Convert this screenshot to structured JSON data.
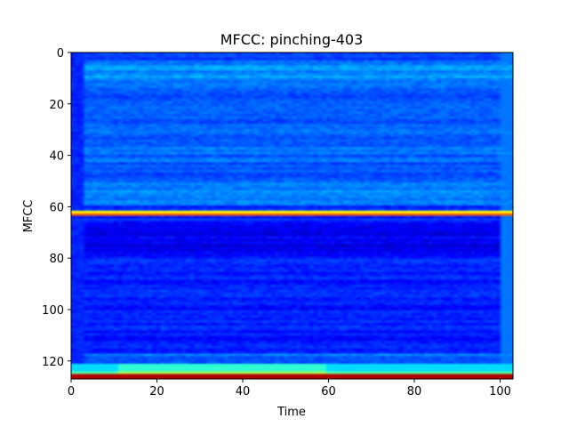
{
  "chart_data": {
    "type": "heatmap",
    "title": "MFCC: pinching-403",
    "xlabel": "Time",
    "ylabel": "MFCC",
    "xlim": [
      0,
      103
    ],
    "ylim": [
      127,
      0
    ],
    "y_inverted": true,
    "colormap": "jet",
    "grid": false,
    "legend": "none",
    "x_ticks": [
      0,
      20,
      40,
      60,
      80,
      100
    ],
    "y_ticks": [
      0,
      20,
      40,
      60,
      80,
      100,
      120
    ],
    "n_coefficients": 128,
    "n_frames": 104,
    "features": [
      {
        "name": "bright band",
        "rows": [
          62,
          63
        ],
        "level": "high"
      },
      {
        "name": "bright bottom band",
        "rows": [
          123,
          127
        ],
        "level": "very high"
      }
    ]
  }
}
